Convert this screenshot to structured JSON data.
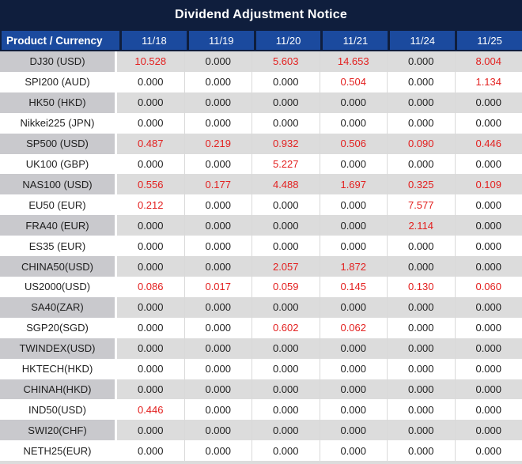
{
  "title": "Dividend Adjustment Notice",
  "colors": {
    "navy": "#0f1e3d",
    "header_blue": "#1b4a9e",
    "row_gray": "#dcdcdc",
    "label_gray": "#c9c9cd",
    "red": "#e3201f",
    "text_dark": "#1f1f1f"
  },
  "chart_data": {
    "type": "table",
    "title": "Dividend Adjustment Notice",
    "columns": [
      "Product / Currency",
      "11/18",
      "11/19",
      "11/20",
      "11/21",
      "11/24",
      "11/25"
    ],
    "value_format": "3 decimals",
    "highlight_rule": "nonzero values shown in red",
    "rows": [
      {
        "product": "DJ30 (USD)",
        "values": [
          10.528,
          0.0,
          5.603,
          14.653,
          0.0,
          8.004
        ]
      },
      {
        "product": "SPI200 (AUD)",
        "values": [
          0.0,
          0.0,
          0.0,
          0.504,
          0.0,
          1.134
        ]
      },
      {
        "product": "HK50 (HKD)",
        "values": [
          0.0,
          0.0,
          0.0,
          0.0,
          0.0,
          0.0
        ]
      },
      {
        "product": "Nikkei225 (JPN)",
        "values": [
          0.0,
          0.0,
          0.0,
          0.0,
          0.0,
          0.0
        ]
      },
      {
        "product": "SP500 (USD)",
        "values": [
          0.487,
          0.219,
          0.932,
          0.506,
          0.09,
          0.446
        ]
      },
      {
        "product": "UK100 (GBP)",
        "values": [
          0.0,
          0.0,
          5.227,
          0.0,
          0.0,
          0.0
        ]
      },
      {
        "product": "NAS100 (USD)",
        "values": [
          0.556,
          0.177,
          4.488,
          1.697,
          0.325,
          0.109
        ]
      },
      {
        "product": "EU50 (EUR)",
        "values": [
          0.212,
          0.0,
          0.0,
          0.0,
          7.577,
          0.0
        ]
      },
      {
        "product": "FRA40 (EUR)",
        "values": [
          0.0,
          0.0,
          0.0,
          0.0,
          2.114,
          0.0
        ]
      },
      {
        "product": "ES35 (EUR)",
        "values": [
          0.0,
          0.0,
          0.0,
          0.0,
          0.0,
          0.0
        ]
      },
      {
        "product": "CHINA50(USD)",
        "values": [
          0.0,
          0.0,
          2.057,
          1.872,
          0.0,
          0.0
        ]
      },
      {
        "product": "US2000(USD)",
        "values": [
          0.086,
          0.017,
          0.059,
          0.145,
          0.13,
          0.06
        ]
      },
      {
        "product": "SA40(ZAR)",
        "values": [
          0.0,
          0.0,
          0.0,
          0.0,
          0.0,
          0.0
        ]
      },
      {
        "product": "SGP20(SGD)",
        "values": [
          0.0,
          0.0,
          0.602,
          0.062,
          0.0,
          0.0
        ]
      },
      {
        "product": "TWINDEX(USD)",
        "values": [
          0.0,
          0.0,
          0.0,
          0.0,
          0.0,
          0.0
        ]
      },
      {
        "product": "HKTECH(HKD)",
        "values": [
          0.0,
          0.0,
          0.0,
          0.0,
          0.0,
          0.0
        ]
      },
      {
        "product": "CHINAH(HKD)",
        "values": [
          0.0,
          0.0,
          0.0,
          0.0,
          0.0,
          0.0
        ]
      },
      {
        "product": "IND50(USD)",
        "values": [
          0.446,
          0.0,
          0.0,
          0.0,
          0.0,
          0.0
        ]
      },
      {
        "product": "SWI20(CHF)",
        "values": [
          0.0,
          0.0,
          0.0,
          0.0,
          0.0,
          0.0
        ]
      },
      {
        "product": "NETH25(EUR)",
        "values": [
          0.0,
          0.0,
          0.0,
          0.0,
          0.0,
          0.0
        ]
      }
    ]
  }
}
